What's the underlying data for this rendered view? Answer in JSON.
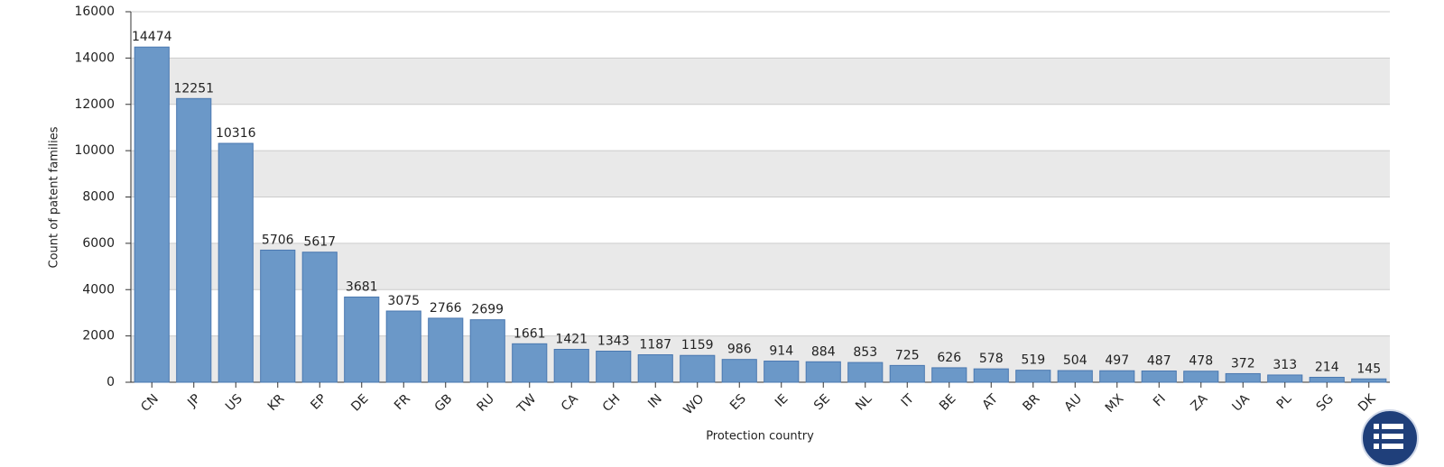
{
  "chart_data": {
    "type": "bar",
    "x_label": "Protection country",
    "y_label": "Count of patent families",
    "categories": [
      "CN",
      "JP",
      "US",
      "KR",
      "EP",
      "DE",
      "FR",
      "GB",
      "RU",
      "TW",
      "CA",
      "CH",
      "IN",
      "WO",
      "ES",
      "IE",
      "SE",
      "NL",
      "IT",
      "BE",
      "AT",
      "BR",
      "AU",
      "MX",
      "FI",
      "ZA",
      "UA",
      "PL",
      "SG",
      "DK"
    ],
    "values": [
      14474,
      12251,
      10316,
      5706,
      5617,
      3681,
      3075,
      2766,
      2699,
      1661,
      1421,
      1343,
      1187,
      1159,
      986,
      914,
      884,
      853,
      725,
      626,
      578,
      519,
      504,
      497,
      487,
      478,
      372,
      313,
      214,
      145
    ],
    "color": "#6b98c8",
    "ylim": [
      0,
      16000
    ],
    "yticks": [
      0,
      2000,
      4000,
      6000,
      8000,
      10000,
      12000,
      14000,
      16000
    ],
    "grid": true,
    "grid_bands": true
  }
}
